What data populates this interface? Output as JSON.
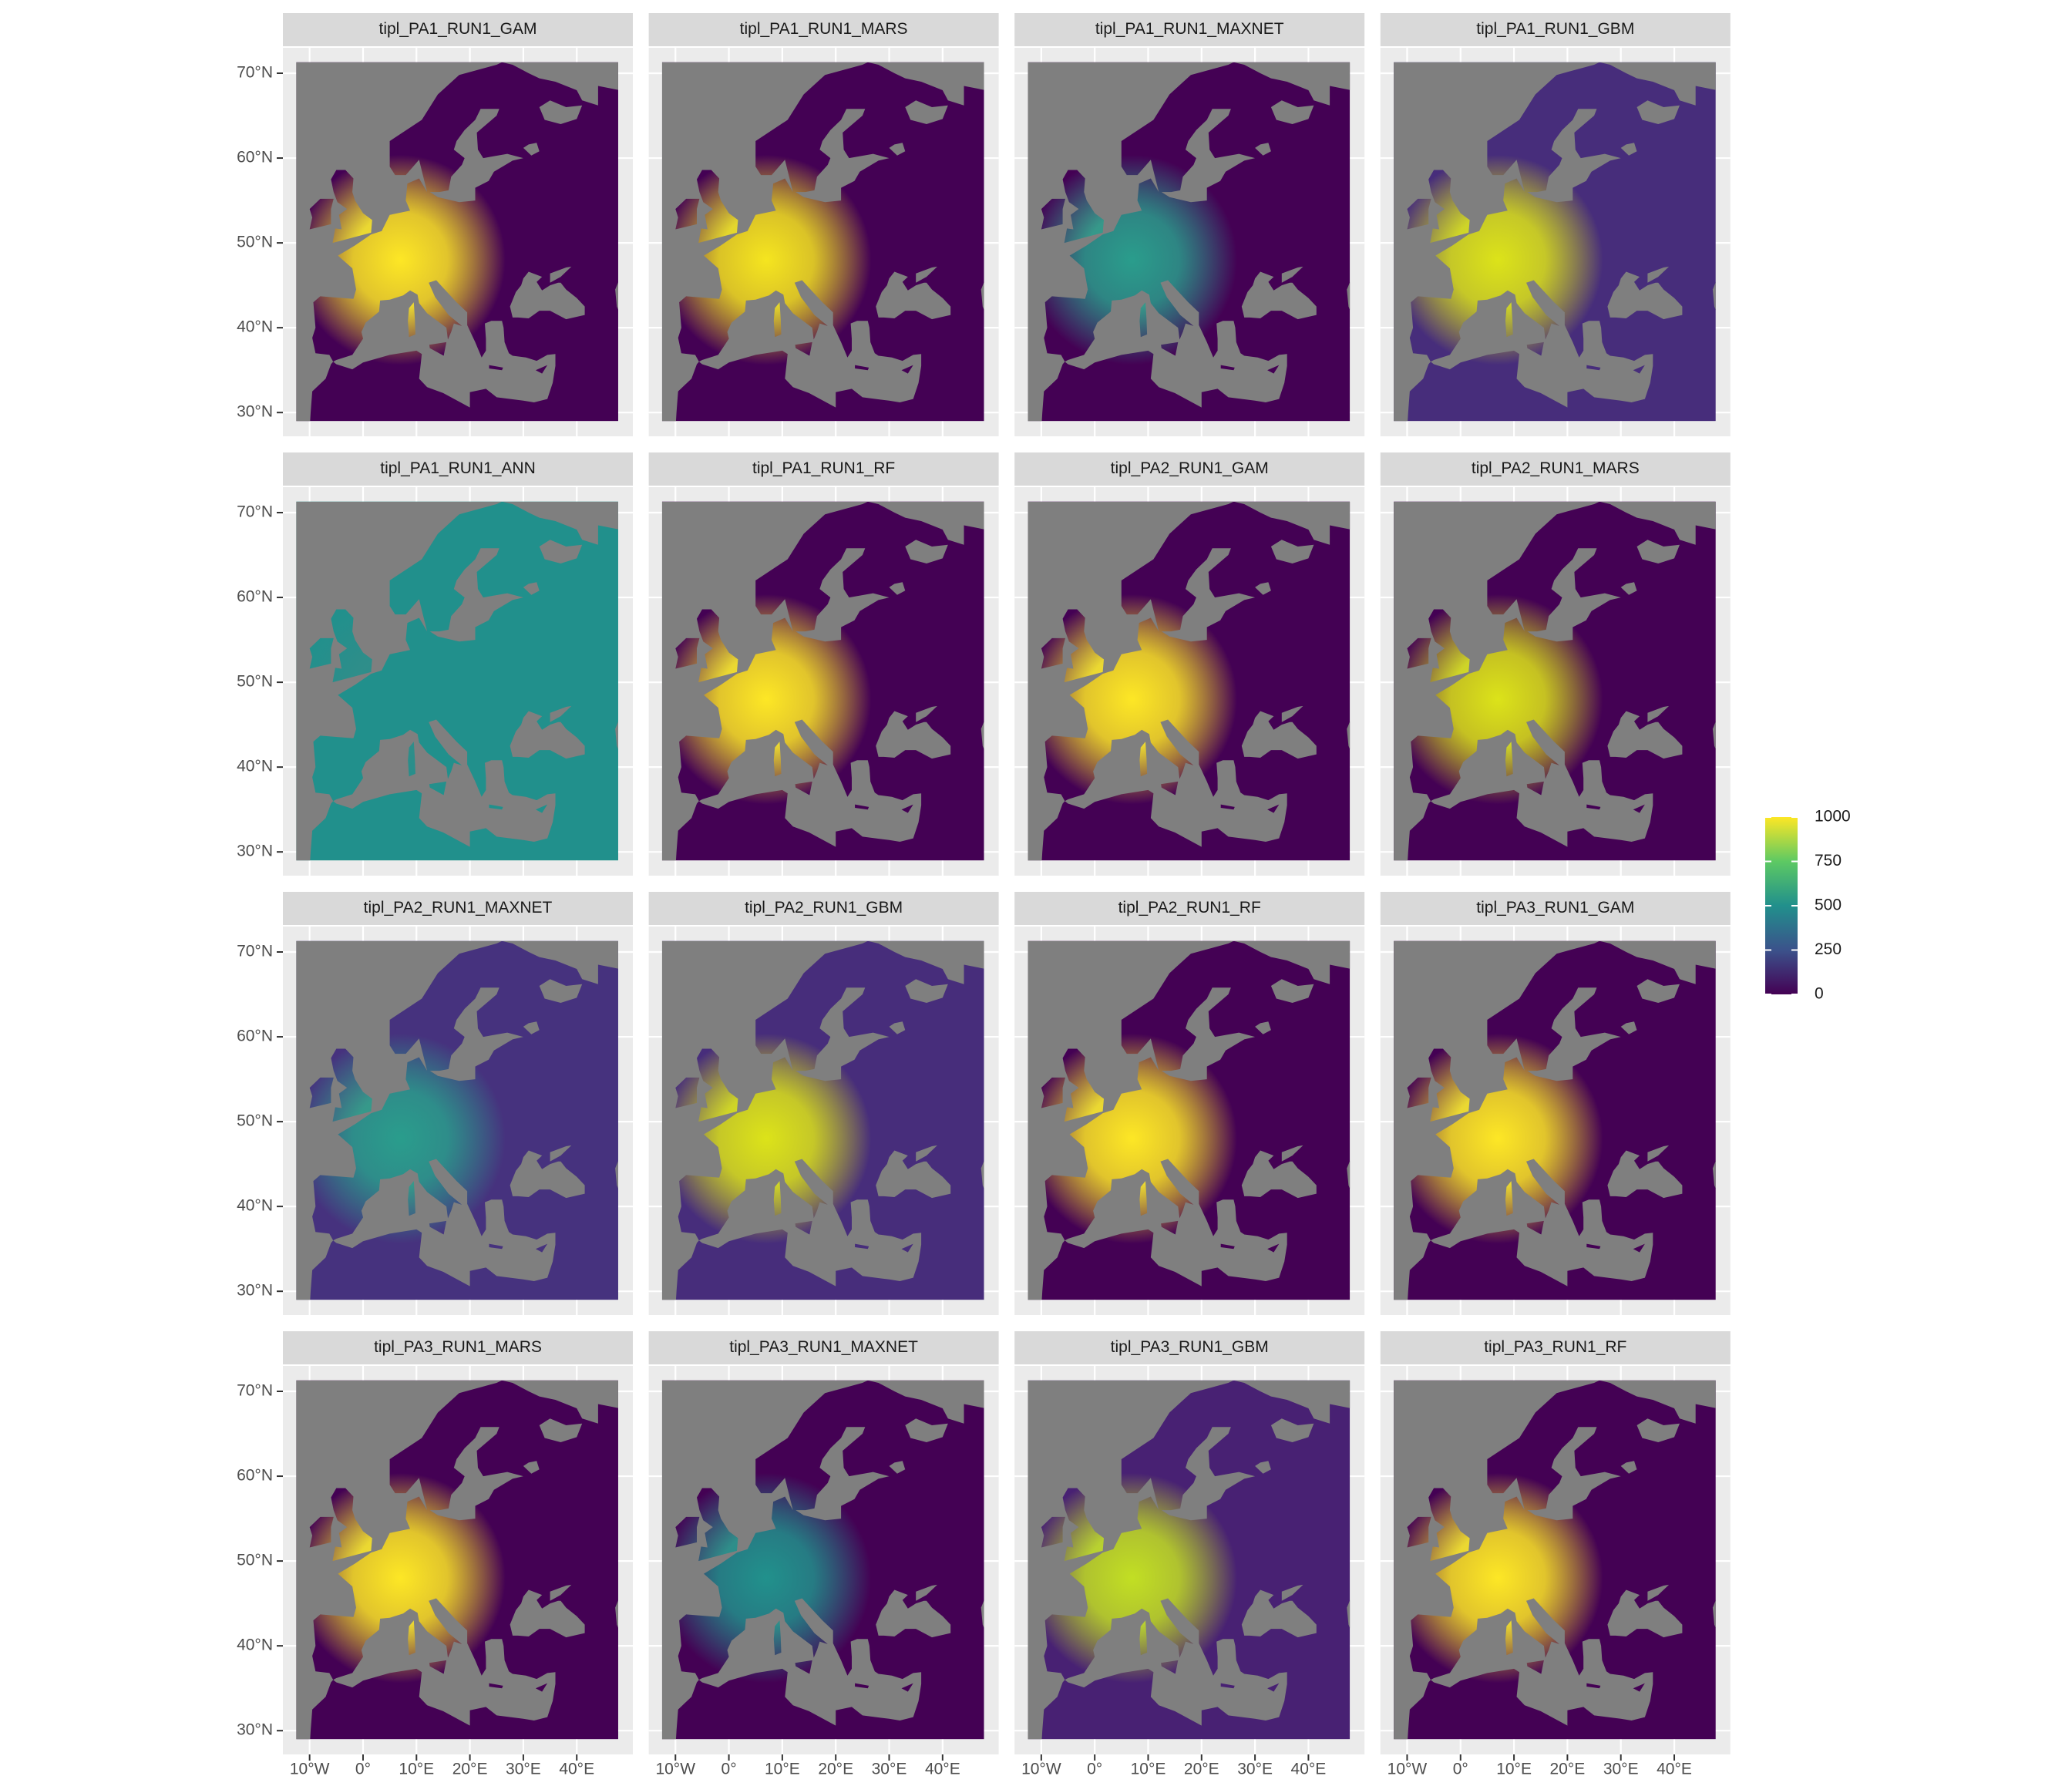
{
  "chart_data": {
    "type": "map",
    "facets": [
      {
        "title": "tipl_PA1_RUN1_GAM",
        "colors": [
          "#440154",
          "#fde725"
        ]
      },
      {
        "title": "tipl_PA1_RUN1_MARS",
        "colors": [
          "#440154",
          "#f5e51f"
        ]
      },
      {
        "title": "tipl_PA1_RUN1_MAXNET",
        "colors": [
          "#440154",
          "#2a9d8c"
        ]
      },
      {
        "title": "tipl_PA1_RUN1_GBM",
        "colors": [
          "#472d7b",
          "#dce319"
        ]
      },
      {
        "title": "tipl_PA1_RUN1_ANN",
        "colors": [
          "#21908c",
          "#21908c"
        ]
      },
      {
        "title": "tipl_PA1_RUN1_RF",
        "colors": [
          "#440154",
          "#fde725"
        ]
      },
      {
        "title": "tipl_PA2_RUN1_GAM",
        "colors": [
          "#440154",
          "#fde725"
        ]
      },
      {
        "title": "tipl_PA2_RUN1_MARS",
        "colors": [
          "#440154",
          "#dce319"
        ]
      },
      {
        "title": "tipl_PA2_RUN1_MAXNET",
        "colors": [
          "#46327e",
          "#2a9d8c"
        ]
      },
      {
        "title": "tipl_PA2_RUN1_GBM",
        "colors": [
          "#472d7b",
          "#dce319"
        ]
      },
      {
        "title": "tipl_PA2_RUN1_RF",
        "colors": [
          "#440154",
          "#fde725"
        ]
      },
      {
        "title": "tipl_PA3_RUN1_GAM",
        "colors": [
          "#440154",
          "#fde725"
        ]
      },
      {
        "title": "tipl_PA3_RUN1_MARS",
        "colors": [
          "#440154",
          "#fde725"
        ]
      },
      {
        "title": "tipl_PA3_RUN1_MAXNET",
        "colors": [
          "#440154",
          "#21918c"
        ]
      },
      {
        "title": "tipl_PA3_RUN1_GBM",
        "colors": [
          "#482173",
          "#c2df23"
        ]
      },
      {
        "title": "tipl_PA3_RUN1_RF",
        "colors": [
          "#440154",
          "#fde725"
        ]
      }
    ],
    "xlim": [
      -15,
      50.5
    ],
    "ylim": [
      27.2,
      73
    ],
    "xticks": [
      {
        "value": -10,
        "label": "10°W"
      },
      {
        "value": 0,
        "label": "0°"
      },
      {
        "value": 10,
        "label": "10°E"
      },
      {
        "value": 20,
        "label": "20°E"
      },
      {
        "value": 30,
        "label": "30°E"
      },
      {
        "value": 40,
        "label": "40°E"
      }
    ],
    "yticks": [
      {
        "value": 30,
        "label": "30°N"
      },
      {
        "value": 40,
        "label": "40°N"
      },
      {
        "value": 50,
        "label": "50°N"
      },
      {
        "value": 60,
        "label": "60°N"
      },
      {
        "value": 70,
        "label": "70°N"
      }
    ],
    "grid": true,
    "sea_color": "#7f7f7f",
    "legend": {
      "lim": [
        0,
        1000
      ],
      "ticks": [
        0,
        250,
        500,
        750,
        1000
      ],
      "colors": [
        "#440154",
        "#3b528b",
        "#21908c",
        "#5dc963",
        "#fde725"
      ]
    }
  }
}
